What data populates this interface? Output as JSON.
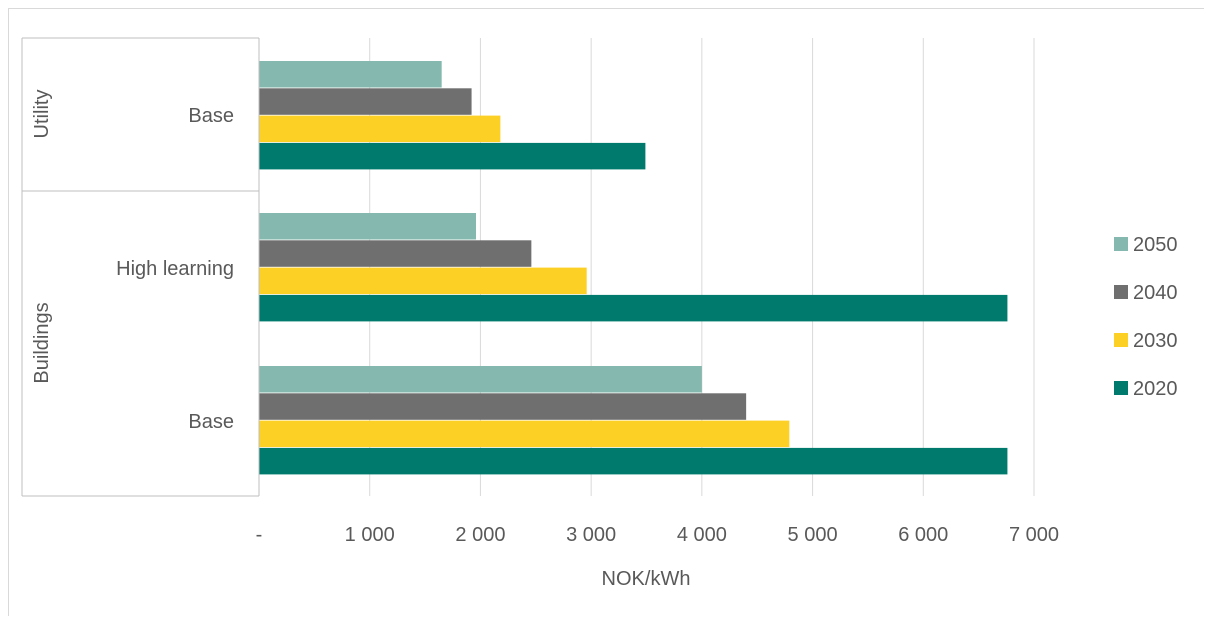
{
  "chart_data": {
    "type": "bar",
    "orientation": "horizontal",
    "xlabel": "NOK/kWh",
    "xlim": [
      0,
      7000
    ],
    "x_ticks": [
      0,
      1000,
      2000,
      3000,
      4000,
      5000,
      6000,
      7000
    ],
    "x_tick_labels": [
      "-",
      "1 000",
      "2 000",
      "3 000",
      "4 000",
      "5 000",
      "6 000",
      "7 000"
    ],
    "grid": true,
    "legend_position": "right",
    "groups": [
      {
        "name": "Utility",
        "categories": [
          "Base"
        ]
      },
      {
        "name": "Buildings",
        "categories": [
          "High learning",
          "Base"
        ]
      }
    ],
    "categories": [
      "Utility - Base",
      "Buildings - High learning",
      "Buildings - Base"
    ],
    "category_labels": [
      "Base",
      "High learning",
      "Base"
    ],
    "series": [
      {
        "name": "2050",
        "color": "#85b8ae",
        "values": [
          1650,
          1960,
          4000
        ]
      },
      {
        "name": "2040",
        "color": "#6f6f6f",
        "values": [
          1920,
          2460,
          4400
        ]
      },
      {
        "name": "2030",
        "color": "#fdd026",
        "values": [
          2180,
          2960,
          4790
        ]
      },
      {
        "name": "2020",
        "color": "#007a6c",
        "values": [
          3490,
          6760,
          6760
        ]
      }
    ]
  }
}
